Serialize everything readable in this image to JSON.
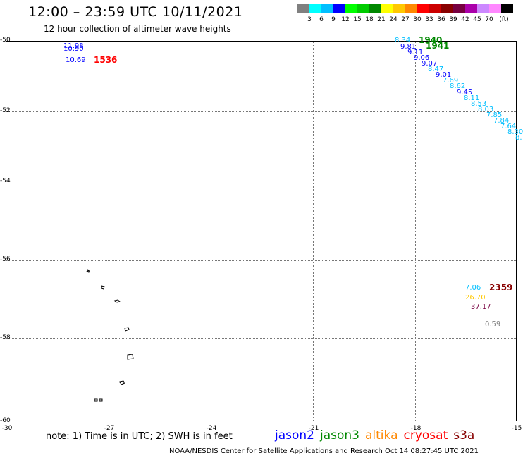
{
  "header": {
    "title": "12:00 – 23:59 UTC 10/11/2021",
    "subtitle": "12 hour collection of altimeter wave heights"
  },
  "legend": {
    "colors": [
      "#808080",
      "#00ffff",
      "#00bfff",
      "#0000ff",
      "#00ff00",
      "#00cc00",
      "#008800",
      "#ffff00",
      "#ffc800",
      "#ff8800",
      "#ff0000",
      "#cc0000",
      "#880000",
      "#770040",
      "#aa00aa",
      "#cc88ff",
      "#ff88ff",
      "#000000"
    ],
    "labels": [
      "3",
      "6",
      "9",
      "12",
      "15",
      "18",
      "21",
      "24",
      "27",
      "30",
      "33",
      "36",
      "39",
      "42",
      "45",
      "70",
      "(ft)"
    ]
  },
  "axes": {
    "y_labels": [
      "-50",
      "-52",
      "-54",
      "-56",
      "-58",
      "-60"
    ],
    "x_labels": [
      "-30",
      "-27",
      "-24",
      "-21",
      "-18",
      "-15"
    ]
  },
  "observations": [
    {
      "text": "11.98",
      "color": "#0000ff"
    },
    {
      "text": "10.90",
      "color": "#0000ff"
    },
    {
      "text": "10.69",
      "color": "#0000ff"
    },
    {
      "text": "8.34",
      "color": "#00bfff"
    },
    {
      "text": "9.81",
      "color": "#0000ff"
    },
    {
      "text": "9.11",
      "color": "#0000ff"
    },
    {
      "text": "9.06",
      "color": "#0000ff"
    },
    {
      "text": "9.07",
      "color": "#0000ff"
    },
    {
      "text": "8.47",
      "color": "#00bfff"
    },
    {
      "text": "9.01",
      "color": "#0000ff"
    },
    {
      "text": "7.69",
      "color": "#00bfff"
    },
    {
      "text": "8.62",
      "color": "#00bfff"
    },
    {
      "text": "9.45",
      "color": "#0000ff"
    },
    {
      "text": "8.11",
      "color": "#00bfff"
    },
    {
      "text": "8.53",
      "color": "#00bfff"
    },
    {
      "text": "8.03",
      "color": "#00bfff"
    },
    {
      "text": "7.85",
      "color": "#00bfff"
    },
    {
      "text": "7.84",
      "color": "#00bfff"
    },
    {
      "text": "7.64",
      "color": "#00bfff"
    },
    {
      "text": "8.30",
      "color": "#00bfff"
    },
    {
      "text": "8.",
      "color": "#00bfff"
    },
    {
      "text": "7.06",
      "color": "#00bfff"
    },
    {
      "text": "26.70",
      "color": "#ffc800"
    },
    {
      "text": "37.17",
      "color": "#770040"
    },
    {
      "text": "0.59",
      "color": "#808080"
    }
  ],
  "time_labels": [
    {
      "text": "1536",
      "color": "#ff0000"
    },
    {
      "text": "1940",
      "color": "#008800"
    },
    {
      "text": "1941",
      "color": "#008800"
    },
    {
      "text": "2359",
      "color": "#880000"
    }
  ],
  "footer": {
    "note": "note: 1) Time is in UTC; 2) SWH is in feet",
    "satellites": [
      {
        "name": "jason2",
        "color": "#0000ff"
      },
      {
        "name": "jason3",
        "color": "#008800"
      },
      {
        "name": "altika",
        "color": "#ff8800"
      },
      {
        "name": "cryosat",
        "color": "#ff0000"
      },
      {
        "name": "s3a",
        "color": "#880000"
      }
    ],
    "credit": "NOAA/NESDIS Center for Satellite Applications and Research   Oct 14 08:27:45 UTC 2021"
  }
}
